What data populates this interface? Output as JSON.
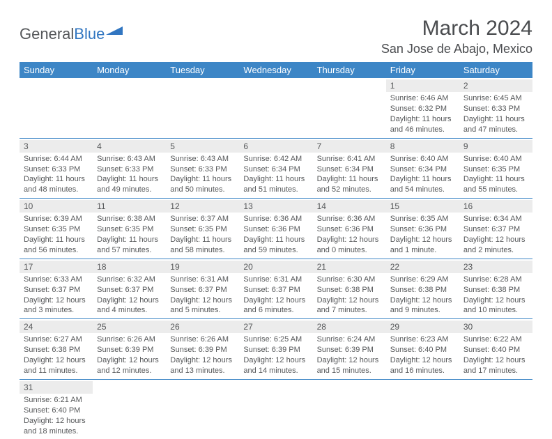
{
  "logo": {
    "text_a": "General",
    "text_b": "Blue"
  },
  "header": {
    "month_title": "March 2024",
    "location": "San Jose de Abajo, Mexico"
  },
  "styling": {
    "header_bg": "#3d86c6",
    "header_fg": "#ffffff",
    "daynum_bg": "#ececec",
    "row_divider": "#3d86c6",
    "body_text": "#555759",
    "logo_gray": "#55575a",
    "logo_blue": "#3176c1",
    "font_family": "Arial",
    "title_fontsize": 30,
    "location_fontsize": 18,
    "header_fontsize": 13,
    "cell_fontsize": 11
  },
  "day_headers": [
    "Sunday",
    "Monday",
    "Tuesday",
    "Wednesday",
    "Thursday",
    "Friday",
    "Saturday"
  ],
  "weeks": [
    [
      {
        "n": "",
        "sr": "",
        "ss": "",
        "dl": ""
      },
      {
        "n": "",
        "sr": "",
        "ss": "",
        "dl": ""
      },
      {
        "n": "",
        "sr": "",
        "ss": "",
        "dl": ""
      },
      {
        "n": "",
        "sr": "",
        "ss": "",
        "dl": ""
      },
      {
        "n": "",
        "sr": "",
        "ss": "",
        "dl": ""
      },
      {
        "n": "1",
        "sr": "Sunrise: 6:46 AM",
        "ss": "Sunset: 6:32 PM",
        "dl": "Daylight: 11 hours and 46 minutes."
      },
      {
        "n": "2",
        "sr": "Sunrise: 6:45 AM",
        "ss": "Sunset: 6:33 PM",
        "dl": "Daylight: 11 hours and 47 minutes."
      }
    ],
    [
      {
        "n": "3",
        "sr": "Sunrise: 6:44 AM",
        "ss": "Sunset: 6:33 PM",
        "dl": "Daylight: 11 hours and 48 minutes."
      },
      {
        "n": "4",
        "sr": "Sunrise: 6:43 AM",
        "ss": "Sunset: 6:33 PM",
        "dl": "Daylight: 11 hours and 49 minutes."
      },
      {
        "n": "5",
        "sr": "Sunrise: 6:43 AM",
        "ss": "Sunset: 6:33 PM",
        "dl": "Daylight: 11 hours and 50 minutes."
      },
      {
        "n": "6",
        "sr": "Sunrise: 6:42 AM",
        "ss": "Sunset: 6:34 PM",
        "dl": "Daylight: 11 hours and 51 minutes."
      },
      {
        "n": "7",
        "sr": "Sunrise: 6:41 AM",
        "ss": "Sunset: 6:34 PM",
        "dl": "Daylight: 11 hours and 52 minutes."
      },
      {
        "n": "8",
        "sr": "Sunrise: 6:40 AM",
        "ss": "Sunset: 6:34 PM",
        "dl": "Daylight: 11 hours and 54 minutes."
      },
      {
        "n": "9",
        "sr": "Sunrise: 6:40 AM",
        "ss": "Sunset: 6:35 PM",
        "dl": "Daylight: 11 hours and 55 minutes."
      }
    ],
    [
      {
        "n": "10",
        "sr": "Sunrise: 6:39 AM",
        "ss": "Sunset: 6:35 PM",
        "dl": "Daylight: 11 hours and 56 minutes."
      },
      {
        "n": "11",
        "sr": "Sunrise: 6:38 AM",
        "ss": "Sunset: 6:35 PM",
        "dl": "Daylight: 11 hours and 57 minutes."
      },
      {
        "n": "12",
        "sr": "Sunrise: 6:37 AM",
        "ss": "Sunset: 6:35 PM",
        "dl": "Daylight: 11 hours and 58 minutes."
      },
      {
        "n": "13",
        "sr": "Sunrise: 6:36 AM",
        "ss": "Sunset: 6:36 PM",
        "dl": "Daylight: 11 hours and 59 minutes."
      },
      {
        "n": "14",
        "sr": "Sunrise: 6:36 AM",
        "ss": "Sunset: 6:36 PM",
        "dl": "Daylight: 12 hours and 0 minutes."
      },
      {
        "n": "15",
        "sr": "Sunrise: 6:35 AM",
        "ss": "Sunset: 6:36 PM",
        "dl": "Daylight: 12 hours and 1 minute."
      },
      {
        "n": "16",
        "sr": "Sunrise: 6:34 AM",
        "ss": "Sunset: 6:37 PM",
        "dl": "Daylight: 12 hours and 2 minutes."
      }
    ],
    [
      {
        "n": "17",
        "sr": "Sunrise: 6:33 AM",
        "ss": "Sunset: 6:37 PM",
        "dl": "Daylight: 12 hours and 3 minutes."
      },
      {
        "n": "18",
        "sr": "Sunrise: 6:32 AM",
        "ss": "Sunset: 6:37 PM",
        "dl": "Daylight: 12 hours and 4 minutes."
      },
      {
        "n": "19",
        "sr": "Sunrise: 6:31 AM",
        "ss": "Sunset: 6:37 PM",
        "dl": "Daylight: 12 hours and 5 minutes."
      },
      {
        "n": "20",
        "sr": "Sunrise: 6:31 AM",
        "ss": "Sunset: 6:37 PM",
        "dl": "Daylight: 12 hours and 6 minutes."
      },
      {
        "n": "21",
        "sr": "Sunrise: 6:30 AM",
        "ss": "Sunset: 6:38 PM",
        "dl": "Daylight: 12 hours and 7 minutes."
      },
      {
        "n": "22",
        "sr": "Sunrise: 6:29 AM",
        "ss": "Sunset: 6:38 PM",
        "dl": "Daylight: 12 hours and 9 minutes."
      },
      {
        "n": "23",
        "sr": "Sunrise: 6:28 AM",
        "ss": "Sunset: 6:38 PM",
        "dl": "Daylight: 12 hours and 10 minutes."
      }
    ],
    [
      {
        "n": "24",
        "sr": "Sunrise: 6:27 AM",
        "ss": "Sunset: 6:38 PM",
        "dl": "Daylight: 12 hours and 11 minutes."
      },
      {
        "n": "25",
        "sr": "Sunrise: 6:26 AM",
        "ss": "Sunset: 6:39 PM",
        "dl": "Daylight: 12 hours and 12 minutes."
      },
      {
        "n": "26",
        "sr": "Sunrise: 6:26 AM",
        "ss": "Sunset: 6:39 PM",
        "dl": "Daylight: 12 hours and 13 minutes."
      },
      {
        "n": "27",
        "sr": "Sunrise: 6:25 AM",
        "ss": "Sunset: 6:39 PM",
        "dl": "Daylight: 12 hours and 14 minutes."
      },
      {
        "n": "28",
        "sr": "Sunrise: 6:24 AM",
        "ss": "Sunset: 6:39 PM",
        "dl": "Daylight: 12 hours and 15 minutes."
      },
      {
        "n": "29",
        "sr": "Sunrise: 6:23 AM",
        "ss": "Sunset: 6:40 PM",
        "dl": "Daylight: 12 hours and 16 minutes."
      },
      {
        "n": "30",
        "sr": "Sunrise: 6:22 AM",
        "ss": "Sunset: 6:40 PM",
        "dl": "Daylight: 12 hours and 17 minutes."
      }
    ],
    [
      {
        "n": "31",
        "sr": "Sunrise: 6:21 AM",
        "ss": "Sunset: 6:40 PM",
        "dl": "Daylight: 12 hours and 18 minutes."
      },
      {
        "n": "",
        "sr": "",
        "ss": "",
        "dl": ""
      },
      {
        "n": "",
        "sr": "",
        "ss": "",
        "dl": ""
      },
      {
        "n": "",
        "sr": "",
        "ss": "",
        "dl": ""
      },
      {
        "n": "",
        "sr": "",
        "ss": "",
        "dl": ""
      },
      {
        "n": "",
        "sr": "",
        "ss": "",
        "dl": ""
      },
      {
        "n": "",
        "sr": "",
        "ss": "",
        "dl": ""
      }
    ]
  ]
}
